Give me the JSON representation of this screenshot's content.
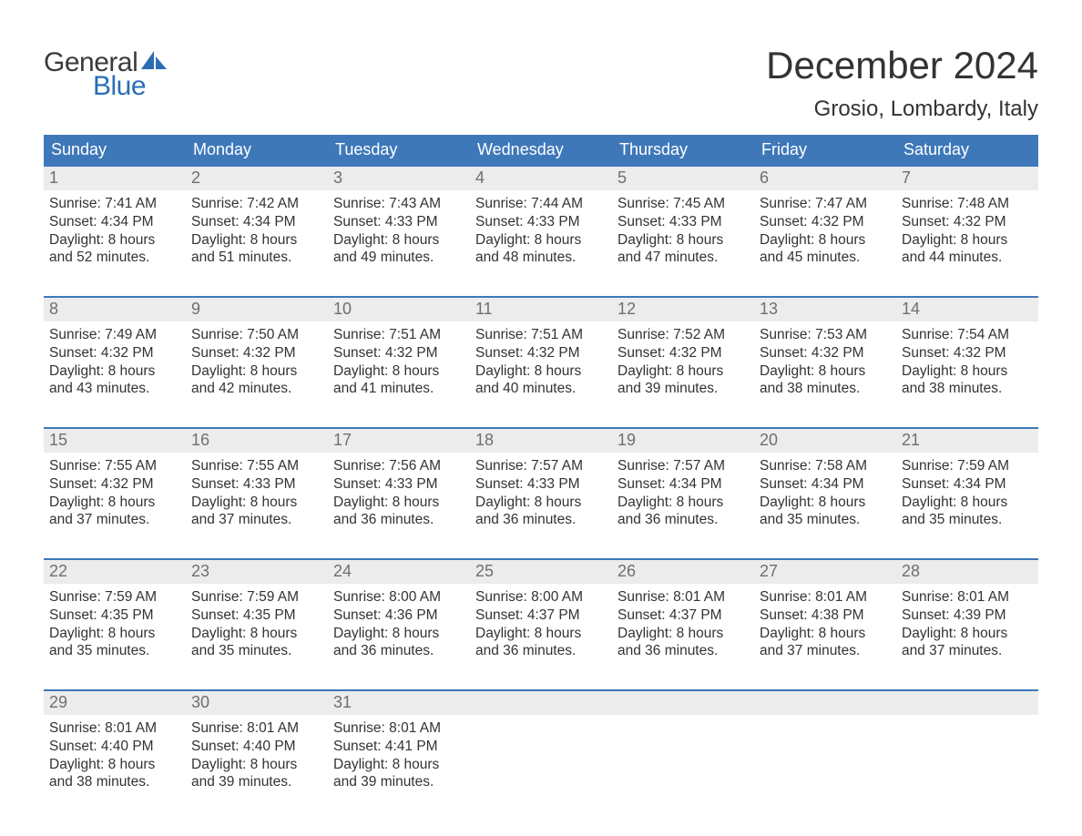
{
  "logo": {
    "word1": "General",
    "word2": "Blue",
    "word1_color": "#3b3b3b",
    "word2_color": "#2a6db3",
    "sail_color": "#2a6db3"
  },
  "title": "December 2024",
  "subtitle": "Grosio, Lombardy, Italy",
  "colors": {
    "header_bg": "#3e78b9",
    "header_text": "#ffffff",
    "daynum_bg": "#ececec",
    "daynum_text": "#6f6f6f",
    "body_text": "#333333",
    "week_border": "#3e78b9",
    "page_bg": "#ffffff"
  },
  "typography": {
    "title_fontsize": 42,
    "subtitle_fontsize": 24,
    "dow_fontsize": 18,
    "daynum_fontsize": 18,
    "body_fontsize": 15.5
  },
  "days_of_week": [
    "Sunday",
    "Monday",
    "Tuesday",
    "Wednesday",
    "Thursday",
    "Friday",
    "Saturday"
  ],
  "weeks": [
    [
      {
        "num": "1",
        "sunrise": "Sunrise: 7:41 AM",
        "sunset": "Sunset: 4:34 PM",
        "day1": "Daylight: 8 hours",
        "day2": "and 52 minutes."
      },
      {
        "num": "2",
        "sunrise": "Sunrise: 7:42 AM",
        "sunset": "Sunset: 4:34 PM",
        "day1": "Daylight: 8 hours",
        "day2": "and 51 minutes."
      },
      {
        "num": "3",
        "sunrise": "Sunrise: 7:43 AM",
        "sunset": "Sunset: 4:33 PM",
        "day1": "Daylight: 8 hours",
        "day2": "and 49 minutes."
      },
      {
        "num": "4",
        "sunrise": "Sunrise: 7:44 AM",
        "sunset": "Sunset: 4:33 PM",
        "day1": "Daylight: 8 hours",
        "day2": "and 48 minutes."
      },
      {
        "num": "5",
        "sunrise": "Sunrise: 7:45 AM",
        "sunset": "Sunset: 4:33 PM",
        "day1": "Daylight: 8 hours",
        "day2": "and 47 minutes."
      },
      {
        "num": "6",
        "sunrise": "Sunrise: 7:47 AM",
        "sunset": "Sunset: 4:32 PM",
        "day1": "Daylight: 8 hours",
        "day2": "and 45 minutes."
      },
      {
        "num": "7",
        "sunrise": "Sunrise: 7:48 AM",
        "sunset": "Sunset: 4:32 PM",
        "day1": "Daylight: 8 hours",
        "day2": "and 44 minutes."
      }
    ],
    [
      {
        "num": "8",
        "sunrise": "Sunrise: 7:49 AM",
        "sunset": "Sunset: 4:32 PM",
        "day1": "Daylight: 8 hours",
        "day2": "and 43 minutes."
      },
      {
        "num": "9",
        "sunrise": "Sunrise: 7:50 AM",
        "sunset": "Sunset: 4:32 PM",
        "day1": "Daylight: 8 hours",
        "day2": "and 42 minutes."
      },
      {
        "num": "10",
        "sunrise": "Sunrise: 7:51 AM",
        "sunset": "Sunset: 4:32 PM",
        "day1": "Daylight: 8 hours",
        "day2": "and 41 minutes."
      },
      {
        "num": "11",
        "sunrise": "Sunrise: 7:51 AM",
        "sunset": "Sunset: 4:32 PM",
        "day1": "Daylight: 8 hours",
        "day2": "and 40 minutes."
      },
      {
        "num": "12",
        "sunrise": "Sunrise: 7:52 AM",
        "sunset": "Sunset: 4:32 PM",
        "day1": "Daylight: 8 hours",
        "day2": "and 39 minutes."
      },
      {
        "num": "13",
        "sunrise": "Sunrise: 7:53 AM",
        "sunset": "Sunset: 4:32 PM",
        "day1": "Daylight: 8 hours",
        "day2": "and 38 minutes."
      },
      {
        "num": "14",
        "sunrise": "Sunrise: 7:54 AM",
        "sunset": "Sunset: 4:32 PM",
        "day1": "Daylight: 8 hours",
        "day2": "and 38 minutes."
      }
    ],
    [
      {
        "num": "15",
        "sunrise": "Sunrise: 7:55 AM",
        "sunset": "Sunset: 4:32 PM",
        "day1": "Daylight: 8 hours",
        "day2": "and 37 minutes."
      },
      {
        "num": "16",
        "sunrise": "Sunrise: 7:55 AM",
        "sunset": "Sunset: 4:33 PM",
        "day1": "Daylight: 8 hours",
        "day2": "and 37 minutes."
      },
      {
        "num": "17",
        "sunrise": "Sunrise: 7:56 AM",
        "sunset": "Sunset: 4:33 PM",
        "day1": "Daylight: 8 hours",
        "day2": "and 36 minutes."
      },
      {
        "num": "18",
        "sunrise": "Sunrise: 7:57 AM",
        "sunset": "Sunset: 4:33 PM",
        "day1": "Daylight: 8 hours",
        "day2": "and 36 minutes."
      },
      {
        "num": "19",
        "sunrise": "Sunrise: 7:57 AM",
        "sunset": "Sunset: 4:34 PM",
        "day1": "Daylight: 8 hours",
        "day2": "and 36 minutes."
      },
      {
        "num": "20",
        "sunrise": "Sunrise: 7:58 AM",
        "sunset": "Sunset: 4:34 PM",
        "day1": "Daylight: 8 hours",
        "day2": "and 35 minutes."
      },
      {
        "num": "21",
        "sunrise": "Sunrise: 7:59 AM",
        "sunset": "Sunset: 4:34 PM",
        "day1": "Daylight: 8 hours",
        "day2": "and 35 minutes."
      }
    ],
    [
      {
        "num": "22",
        "sunrise": "Sunrise: 7:59 AM",
        "sunset": "Sunset: 4:35 PM",
        "day1": "Daylight: 8 hours",
        "day2": "and 35 minutes."
      },
      {
        "num": "23",
        "sunrise": "Sunrise: 7:59 AM",
        "sunset": "Sunset: 4:35 PM",
        "day1": "Daylight: 8 hours",
        "day2": "and 35 minutes."
      },
      {
        "num": "24",
        "sunrise": "Sunrise: 8:00 AM",
        "sunset": "Sunset: 4:36 PM",
        "day1": "Daylight: 8 hours",
        "day2": "and 36 minutes."
      },
      {
        "num": "25",
        "sunrise": "Sunrise: 8:00 AM",
        "sunset": "Sunset: 4:37 PM",
        "day1": "Daylight: 8 hours",
        "day2": "and 36 minutes."
      },
      {
        "num": "26",
        "sunrise": "Sunrise: 8:01 AM",
        "sunset": "Sunset: 4:37 PM",
        "day1": "Daylight: 8 hours",
        "day2": "and 36 minutes."
      },
      {
        "num": "27",
        "sunrise": "Sunrise: 8:01 AM",
        "sunset": "Sunset: 4:38 PM",
        "day1": "Daylight: 8 hours",
        "day2": "and 37 minutes."
      },
      {
        "num": "28",
        "sunrise": "Sunrise: 8:01 AM",
        "sunset": "Sunset: 4:39 PM",
        "day1": "Daylight: 8 hours",
        "day2": "and 37 minutes."
      }
    ],
    [
      {
        "num": "29",
        "sunrise": "Sunrise: 8:01 AM",
        "sunset": "Sunset: 4:40 PM",
        "day1": "Daylight: 8 hours",
        "day2": "and 38 minutes."
      },
      {
        "num": "30",
        "sunrise": "Sunrise: 8:01 AM",
        "sunset": "Sunset: 4:40 PM",
        "day1": "Daylight: 8 hours",
        "day2": "and 39 minutes."
      },
      {
        "num": "31",
        "sunrise": "Sunrise: 8:01 AM",
        "sunset": "Sunset: 4:41 PM",
        "day1": "Daylight: 8 hours",
        "day2": "and 39 minutes."
      },
      null,
      null,
      null,
      null
    ]
  ]
}
